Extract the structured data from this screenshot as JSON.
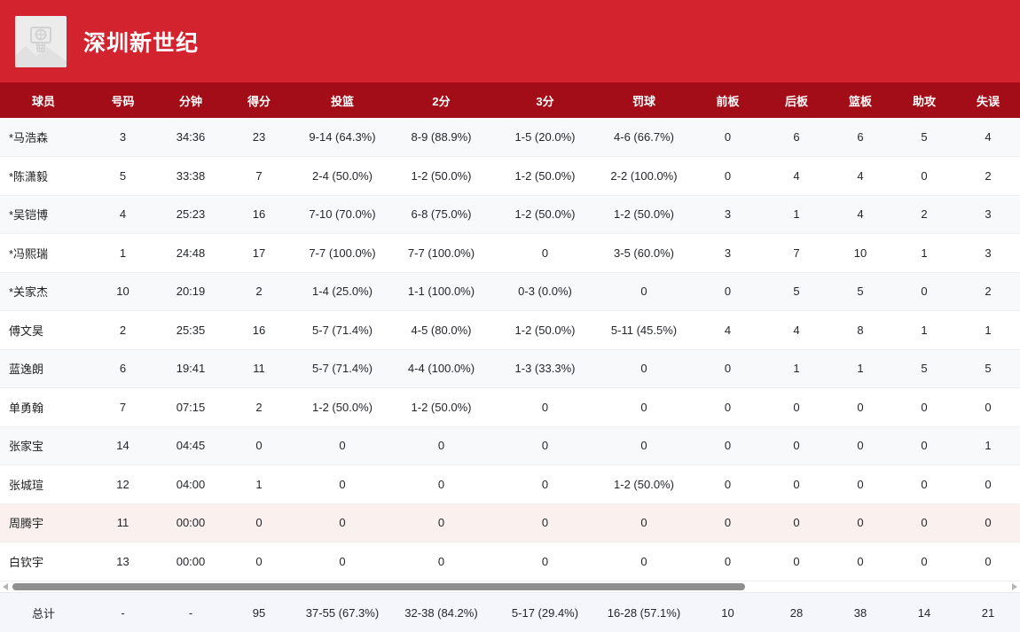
{
  "team": {
    "name": "深圳新世纪"
  },
  "logo": {
    "icon": "basketball-hoop-placeholder"
  },
  "colors": {
    "banner_red": "#d2232f",
    "table_header_red": "#a30d17",
    "stripe_gray": "#f8f9fa",
    "dnp_pink_row": "#faf1ee",
    "totals_bg": "#f4f6fb"
  },
  "table": {
    "columns": [
      "球员",
      "号码",
      "分钟",
      "得分",
      "投篮",
      "2分",
      "3分",
      "罚球",
      "前板",
      "后板",
      "篮板",
      "助攻",
      "失误"
    ],
    "rows": [
      {
        "tint": "gray",
        "cells": [
          "*马浩森",
          "3",
          "34:36",
          "23",
          "9-14 (64.3%)",
          "8-9 (88.9%)",
          "1-5 (20.0%)",
          "4-6 (66.7%)",
          "0",
          "6",
          "6",
          "5",
          "4"
        ]
      },
      {
        "tint": "white",
        "cells": [
          "*陈潇毅",
          "5",
          "33:38",
          "7",
          "2-4 (50.0%)",
          "1-2 (50.0%)",
          "1-2 (50.0%)",
          "2-2 (100.0%)",
          "0",
          "4",
          "4",
          "0",
          "2"
        ]
      },
      {
        "tint": "gray",
        "cells": [
          "*吴铠博",
          "4",
          "25:23",
          "16",
          "7-10 (70.0%)",
          "6-8 (75.0%)",
          "1-2 (50.0%)",
          "1-2 (50.0%)",
          "3",
          "1",
          "4",
          "2",
          "3"
        ]
      },
      {
        "tint": "white",
        "cells": [
          "*冯熙瑞",
          "1",
          "24:48",
          "17",
          "7-7 (100.0%)",
          "7-7 (100.0%)",
          "0",
          "3-5 (60.0%)",
          "3",
          "7",
          "10",
          "1",
          "3"
        ]
      },
      {
        "tint": "gray",
        "cells": [
          "*关家杰",
          "10",
          "20:19",
          "2",
          "1-4 (25.0%)",
          "1-1 (100.0%)",
          "0-3 (0.0%)",
          "0",
          "0",
          "5",
          "5",
          "0",
          "2"
        ]
      },
      {
        "tint": "white",
        "cells": [
          "傅文昊",
          "2",
          "25:35",
          "16",
          "5-7 (71.4%)",
          "4-5 (80.0%)",
          "1-2 (50.0%)",
          "5-11 (45.5%)",
          "4",
          "4",
          "8",
          "1",
          "1"
        ]
      },
      {
        "tint": "gray",
        "cells": [
          "蓝逸朗",
          "6",
          "19:41",
          "11",
          "5-7 (71.4%)",
          "4-4 (100.0%)",
          "1-3 (33.3%)",
          "0",
          "0",
          "1",
          "1",
          "5",
          "5"
        ]
      },
      {
        "tint": "white",
        "cells": [
          "单勇翰",
          "7",
          "07:15",
          "2",
          "1-2 (50.0%)",
          "1-2 (50.0%)",
          "0",
          "0",
          "0",
          "0",
          "0",
          "0",
          "0"
        ]
      },
      {
        "tint": "gray",
        "cells": [
          "张家宝",
          "14",
          "04:45",
          "0",
          "0",
          "0",
          "0",
          "0",
          "0",
          "0",
          "0",
          "0",
          "1"
        ]
      },
      {
        "tint": "white",
        "cells": [
          "张城瑄",
          "12",
          "04:00",
          "1",
          "0",
          "0",
          "0",
          "1-2 (50.0%)",
          "0",
          "0",
          "0",
          "0",
          "0"
        ]
      },
      {
        "tint": "pink",
        "cells": [
          "周腾宇",
          "11",
          "00:00",
          "0",
          "0",
          "0",
          "0",
          "0",
          "0",
          "0",
          "0",
          "0",
          "0"
        ]
      },
      {
        "tint": "white",
        "cells": [
          "白钦宇",
          "13",
          "00:00",
          "0",
          "0",
          "0",
          "0",
          "0",
          "0",
          "0",
          "0",
          "0",
          "0"
        ]
      }
    ],
    "total": {
      "cells": [
        "总计",
        "-",
        "-",
        "95",
        "37-55 (67.3%)",
        "32-38 (84.2%)",
        "5-17 (29.4%)",
        "16-28 (57.1%)",
        "10",
        "28",
        "38",
        "14",
        "21"
      ]
    }
  }
}
